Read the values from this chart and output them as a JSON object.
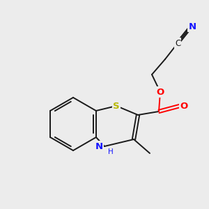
{
  "bg_color": "#ececec",
  "bond_color": "#1a1a1a",
  "N_color": "#1414ff",
  "O_color": "#ff0000",
  "S_color": "#b8b800",
  "C_color": "#1a1a1a",
  "lw": 1.4,
  "font_size": 8.5,
  "label_S": "S",
  "label_N": "N",
  "label_H": "H",
  "label_O": "O",
  "label_C": "C",
  "label_N2": "N"
}
